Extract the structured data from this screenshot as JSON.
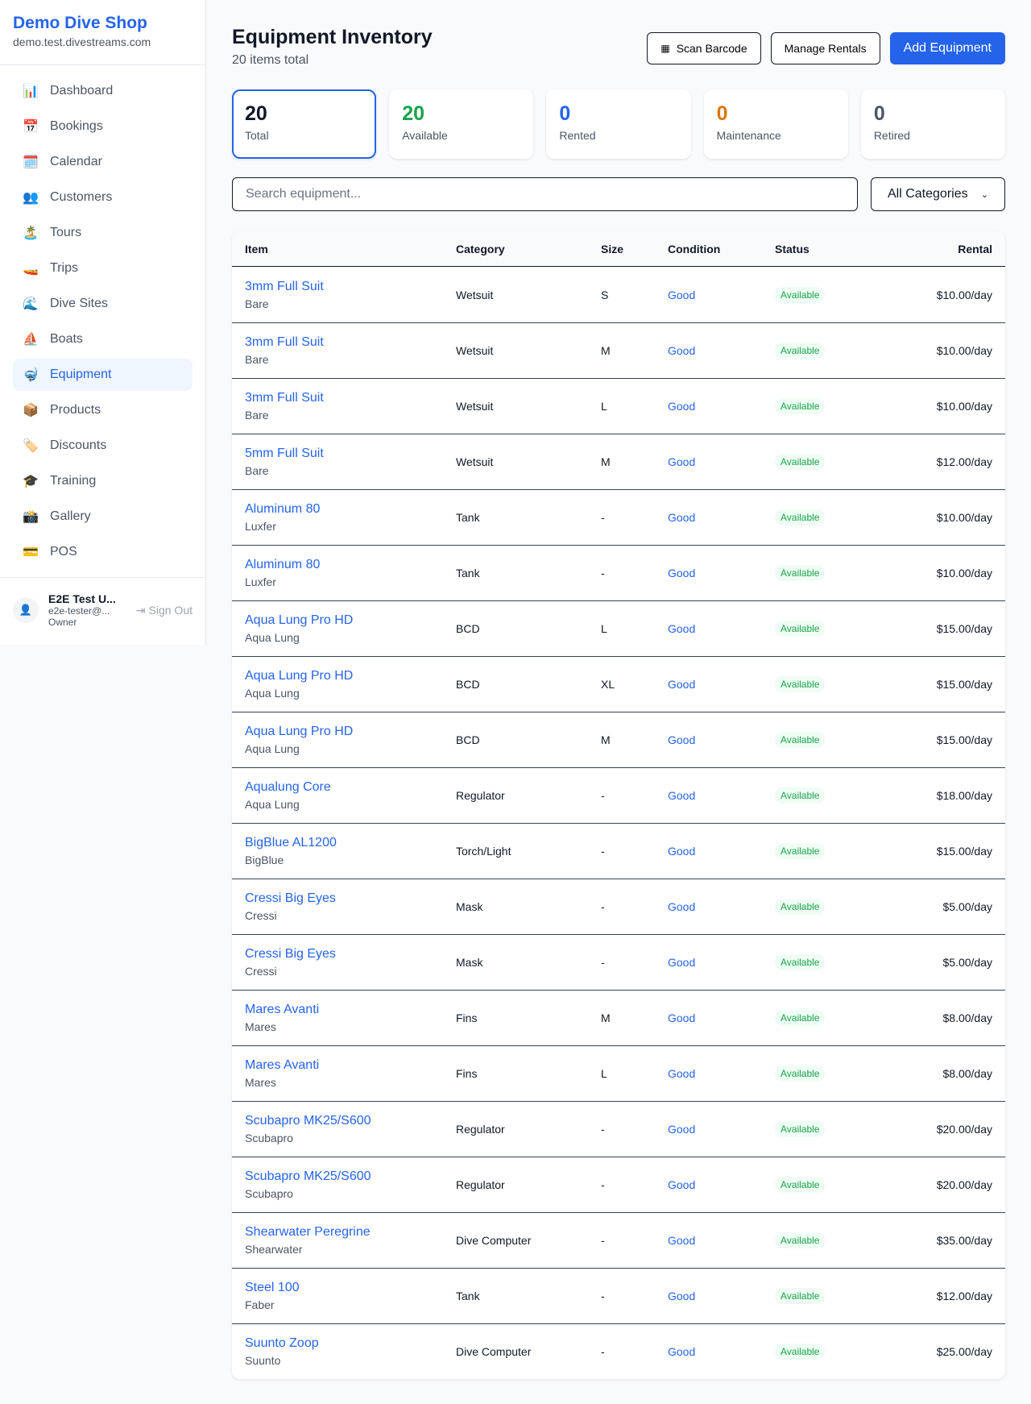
{
  "sidebar": {
    "brand": "Demo Dive Shop",
    "domain": "demo.test.divestreams.com",
    "items": [
      {
        "label": "Dashboard",
        "icon": "📊"
      },
      {
        "label": "Bookings",
        "icon": "📅"
      },
      {
        "label": "Calendar",
        "icon": "🗓️"
      },
      {
        "label": "Customers",
        "icon": "👥"
      },
      {
        "label": "Tours",
        "icon": "🏝️"
      },
      {
        "label": "Trips",
        "icon": "🚤"
      },
      {
        "label": "Dive Sites",
        "icon": "🌊"
      },
      {
        "label": "Boats",
        "icon": "⛵"
      },
      {
        "label": "Equipment",
        "icon": "🤿"
      },
      {
        "label": "Products",
        "icon": "📦"
      },
      {
        "label": "Discounts",
        "icon": "🏷️"
      },
      {
        "label": "Training",
        "icon": "🎓"
      },
      {
        "label": "Gallery",
        "icon": "📸"
      },
      {
        "label": "POS",
        "icon": "💳"
      }
    ],
    "active": "Equipment",
    "user": {
      "name": "E2E Test U...",
      "email": "e2e-tester@...",
      "role": "Owner",
      "sign_out": "Sign Out"
    }
  },
  "header": {
    "title": "Equipment Inventory",
    "subtitle": "20 items total",
    "scan": "Scan Barcode",
    "rentals": "Manage Rentals",
    "add": "Add Equipment"
  },
  "stats": [
    {
      "value": "20",
      "label": "Total",
      "color": "#111827"
    },
    {
      "value": "20",
      "label": "Available",
      "color": "#16a34a"
    },
    {
      "value": "0",
      "label": "Rented",
      "color": "#2563eb"
    },
    {
      "value": "0",
      "label": "Maintenance",
      "color": "#d97706"
    },
    {
      "value": "0",
      "label": "Retired",
      "color": "#4b5563"
    }
  ],
  "filters": {
    "search_placeholder": "Search equipment...",
    "category": "All Categories"
  },
  "table": {
    "headers": [
      "Item",
      "Category",
      "Size",
      "Condition",
      "Status",
      "Rental"
    ],
    "rows": [
      [
        "3mm Full Suit",
        "Bare",
        "Wetsuit",
        "S",
        "Good",
        "Available",
        "$10.00/day"
      ],
      [
        "3mm Full Suit",
        "Bare",
        "Wetsuit",
        "M",
        "Good",
        "Available",
        "$10.00/day"
      ],
      [
        "3mm Full Suit",
        "Bare",
        "Wetsuit",
        "L",
        "Good",
        "Available",
        "$10.00/day"
      ],
      [
        "5mm Full Suit",
        "Bare",
        "Wetsuit",
        "M",
        "Good",
        "Available",
        "$12.00/day"
      ],
      [
        "Aluminum 80",
        "Luxfer",
        "Tank",
        "-",
        "Good",
        "Available",
        "$10.00/day"
      ],
      [
        "Aluminum 80",
        "Luxfer",
        "Tank",
        "-",
        "Good",
        "Available",
        "$10.00/day"
      ],
      [
        "Aqua Lung Pro HD",
        "Aqua Lung",
        "BCD",
        "L",
        "Good",
        "Available",
        "$15.00/day"
      ],
      [
        "Aqua Lung Pro HD",
        "Aqua Lung",
        "BCD",
        "XL",
        "Good",
        "Available",
        "$15.00/day"
      ],
      [
        "Aqua Lung Pro HD",
        "Aqua Lung",
        "BCD",
        "M",
        "Good",
        "Available",
        "$15.00/day"
      ],
      [
        "Aqualung Core",
        "Aqua Lung",
        "Regulator",
        "-",
        "Good",
        "Available",
        "$18.00/day"
      ],
      [
        "BigBlue AL1200",
        "BigBlue",
        "Torch/Light",
        "-",
        "Good",
        "Available",
        "$15.00/day"
      ],
      [
        "Cressi Big Eyes",
        "Cressi",
        "Mask",
        "-",
        "Good",
        "Available",
        "$5.00/day"
      ],
      [
        "Cressi Big Eyes",
        "Cressi",
        "Mask",
        "-",
        "Good",
        "Available",
        "$5.00/day"
      ],
      [
        "Mares Avanti",
        "Mares",
        "Fins",
        "M",
        "Good",
        "Available",
        "$8.00/day"
      ],
      [
        "Mares Avanti",
        "Mares",
        "Fins",
        "L",
        "Good",
        "Available",
        "$8.00/day"
      ],
      [
        "Scubapro MK25/S600",
        "Scubapro",
        "Regulator",
        "-",
        "Good",
        "Available",
        "$20.00/day"
      ],
      [
        "Scubapro MK25/S600",
        "Scubapro",
        "Regulator",
        "-",
        "Good",
        "Available",
        "$20.00/day"
      ],
      [
        "Shearwater Peregrine",
        "Shearwater",
        "Dive Computer",
        "-",
        "Good",
        "Available",
        "$35.00/day"
      ],
      [
        "Steel 100",
        "Faber",
        "Tank",
        "-",
        "Good",
        "Available",
        "$12.00/day"
      ],
      [
        "Suunto Zoop",
        "Suunto",
        "Dive Computer",
        "-",
        "Good",
        "Available",
        "$25.00/day"
      ]
    ]
  }
}
